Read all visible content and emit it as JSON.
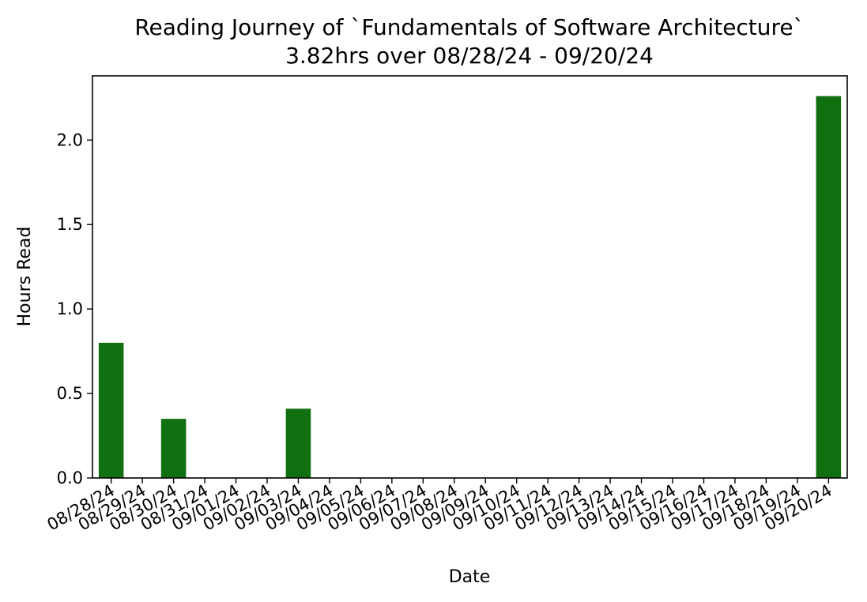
{
  "chart_data": {
    "type": "bar",
    "title": "Reading Journey of `Fundamentals of Software Architecture`",
    "subtitle": "3.82hrs over 08/28/24 - 09/20/24",
    "xlabel": "Date",
    "ylabel": "Hours Read",
    "ylim": [
      0,
      2.38
    ],
    "yticks": [
      "0.0",
      "0.5",
      "1.0",
      "1.5",
      "2.0"
    ],
    "grid": false,
    "bar_color": "#107010",
    "categories": [
      "08/28/24",
      "08/29/24",
      "08/30/24",
      "08/31/24",
      "09/01/24",
      "09/02/24",
      "09/03/24",
      "09/04/24",
      "09/05/24",
      "09/06/24",
      "09/07/24",
      "09/08/24",
      "09/09/24",
      "09/10/24",
      "09/11/24",
      "09/12/24",
      "09/13/24",
      "09/14/24",
      "09/15/24",
      "09/16/24",
      "09/17/24",
      "09/18/24",
      "09/19/24",
      "09/20/24"
    ],
    "values": [
      0.8,
      0,
      0.35,
      0,
      0,
      0,
      0.41,
      0,
      0,
      0,
      0,
      0,
      0,
      0,
      0,
      0,
      0,
      0,
      0,
      0,
      0,
      0,
      0,
      2.26
    ]
  }
}
